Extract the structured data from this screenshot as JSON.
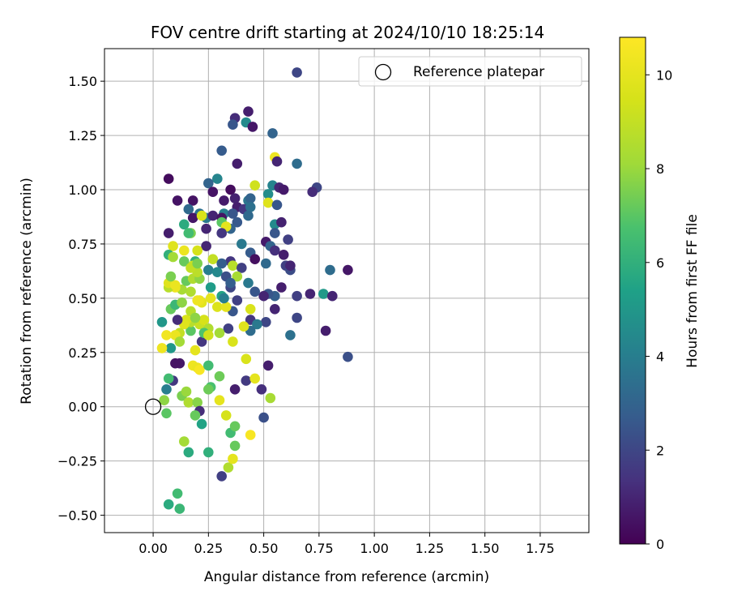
{
  "chart_data": {
    "type": "scatter",
    "title": "FOV centre drift starting at 2024/10/10 18:25:14",
    "xlabel": "Angular distance from reference (arcmin)",
    "ylabel": "Rotation from reference (arcmin)",
    "xlim": [
      -0.22,
      1.97
    ],
    "ylim": [
      -0.58,
      1.65
    ],
    "xticks": [
      0.0,
      0.25,
      0.5,
      0.75,
      1.0,
      1.25,
      1.5,
      1.75
    ],
    "xtick_labels": [
      "0.00",
      "0.25",
      "0.50",
      "0.75",
      "1.00",
      "1.25",
      "1.50",
      "1.75"
    ],
    "yticks": [
      -0.5,
      -0.25,
      0.0,
      0.25,
      0.5,
      0.75,
      1.0,
      1.25,
      1.5
    ],
    "ytick_labels": [
      "−0.50",
      "−0.25",
      "0.00",
      "0.25",
      "0.50",
      "0.75",
      "1.00",
      "1.25",
      "1.50"
    ],
    "grid": true,
    "legend": {
      "placement": "top-right",
      "entries": [
        "Reference platepar"
      ]
    },
    "reference_point": {
      "x": 0.0,
      "y": 0.0
    },
    "colorbar": {
      "label": "Hours from first FF file",
      "colormap": "viridis",
      "range": [
        0,
        10.8
      ],
      "ticks": [
        0,
        2,
        4,
        6,
        8,
        10
      ],
      "tick_labels": [
        "0",
        "2",
        "4",
        "6",
        "8",
        "10"
      ]
    },
    "series": [
      {
        "points": [
          [
            0.65,
            1.54,
            2.0
          ],
          [
            0.43,
            1.36,
            0.8
          ],
          [
            0.37,
            1.33,
            1.2
          ],
          [
            0.36,
            1.3,
            2.5
          ],
          [
            0.42,
            1.31,
            4.5
          ],
          [
            0.45,
            1.29,
            0.6
          ],
          [
            0.54,
            1.26,
            3.0
          ],
          [
            0.31,
            1.18,
            2.7
          ],
          [
            0.55,
            1.15,
            10.3
          ],
          [
            0.38,
            1.12,
            0.8
          ],
          [
            0.56,
            1.13,
            1.0
          ],
          [
            0.65,
            1.12,
            3.3
          ],
          [
            0.07,
            1.05,
            0.3
          ],
          [
            0.29,
            1.05,
            4.3
          ],
          [
            0.25,
            1.03,
            3.0
          ],
          [
            0.46,
            1.02,
            9.3
          ],
          [
            0.54,
            1.02,
            4.2
          ],
          [
            0.57,
            1.01,
            1.0
          ],
          [
            0.74,
            1.01,
            2.0
          ],
          [
            0.72,
            0.99,
            1.2
          ],
          [
            0.27,
            0.99,
            0.5
          ],
          [
            0.35,
            1.0,
            0.3
          ],
          [
            0.32,
            0.95,
            0.7
          ],
          [
            0.11,
            0.95,
            0.5
          ],
          [
            0.18,
            0.95,
            0.5
          ],
          [
            0.37,
            0.96,
            0.9
          ],
          [
            0.43,
            0.95,
            3.7
          ],
          [
            0.44,
            0.96,
            3.0
          ],
          [
            0.52,
            0.98,
            4.6
          ],
          [
            0.59,
            1.0,
            0.7
          ],
          [
            0.38,
            0.92,
            0.8
          ],
          [
            0.41,
            0.91,
            1.5
          ],
          [
            0.44,
            0.92,
            3.5
          ],
          [
            0.16,
            0.91,
            3.2
          ],
          [
            0.52,
            0.94,
            9.8
          ],
          [
            0.56,
            0.93,
            2.5
          ],
          [
            0.21,
            0.89,
            3.5
          ],
          [
            0.18,
            0.87,
            0.6
          ],
          [
            0.24,
            0.87,
            3.8
          ],
          [
            0.27,
            0.88,
            1.0
          ],
          [
            0.32,
            0.89,
            4.0
          ],
          [
            0.36,
            0.89,
            2.5
          ],
          [
            0.31,
            0.87,
            0.5
          ],
          [
            0.43,
            0.88,
            3.2
          ],
          [
            0.38,
            0.85,
            2.6
          ],
          [
            0.55,
            0.84,
            4.5
          ],
          [
            0.58,
            0.85,
            0.9
          ],
          [
            0.22,
            0.88,
            9.6
          ],
          [
            0.31,
            0.85,
            7.0
          ],
          [
            0.14,
            0.84,
            5.8
          ],
          [
            0.35,
            0.82,
            3.0
          ],
          [
            0.33,
            0.83,
            10.0
          ],
          [
            0.07,
            0.8,
            0.8
          ],
          [
            0.17,
            0.8,
            7.5
          ],
          [
            0.24,
            0.82,
            1.0
          ],
          [
            0.31,
            0.8,
            1.5
          ],
          [
            0.55,
            0.8,
            2.5
          ],
          [
            0.61,
            0.77,
            1.8
          ],
          [
            0.51,
            0.76,
            0.7
          ],
          [
            0.16,
            0.8,
            6.5
          ],
          [
            0.4,
            0.75,
            3.8
          ],
          [
            0.24,
            0.74,
            1.0
          ],
          [
            0.09,
            0.74,
            9.8
          ],
          [
            0.2,
            0.72,
            9.5
          ],
          [
            0.27,
            0.68,
            9.0
          ],
          [
            0.35,
            0.67,
            1.5
          ],
          [
            0.14,
            0.72,
            10.2
          ],
          [
            0.14,
            0.67,
            7.2
          ],
          [
            0.19,
            0.67,
            6.0
          ],
          [
            0.31,
            0.66,
            2.8
          ],
          [
            0.07,
            0.7,
            6.0
          ],
          [
            0.09,
            0.69,
            8.2
          ],
          [
            0.18,
            0.65,
            9.2
          ],
          [
            0.25,
            0.63,
            4.0
          ],
          [
            0.29,
            0.62,
            4.4
          ],
          [
            0.33,
            0.6,
            2.3
          ],
          [
            0.36,
            0.65,
            8.7
          ],
          [
            0.4,
            0.64,
            1.8
          ],
          [
            0.38,
            0.6,
            8.3
          ],
          [
            0.44,
            0.71,
            2.7
          ],
          [
            0.46,
            0.68,
            0.4
          ],
          [
            0.51,
            0.66,
            3.2
          ],
          [
            0.53,
            0.74,
            3.0
          ],
          [
            0.55,
            0.72,
            1.3
          ],
          [
            0.59,
            0.7,
            0.8
          ],
          [
            0.6,
            0.65,
            1.8
          ],
          [
            0.62,
            0.63,
            2.2
          ],
          [
            0.62,
            0.65,
            1.0
          ],
          [
            0.71,
            0.52,
            1.0
          ],
          [
            0.8,
            0.63,
            3.3
          ],
          [
            0.88,
            0.63,
            0.6
          ],
          [
            0.77,
            0.52,
            5.1
          ],
          [
            0.81,
            0.51,
            1.0
          ],
          [
            0.78,
            0.35,
            0.8
          ],
          [
            0.88,
            0.23,
            2.3
          ],
          [
            0.55,
            0.51,
            2.8
          ],
          [
            0.52,
            0.52,
            2.5
          ],
          [
            0.5,
            0.51,
            1.0
          ],
          [
            0.46,
            0.53,
            2.5
          ],
          [
            0.43,
            0.57,
            3.8
          ],
          [
            0.58,
            0.55,
            0.8
          ],
          [
            0.65,
            0.51,
            1.8
          ],
          [
            0.65,
            0.41,
            2.0
          ],
          [
            0.55,
            0.45,
            1.0
          ],
          [
            0.62,
            0.33,
            3.5
          ],
          [
            0.51,
            0.39,
            2.0
          ],
          [
            0.44,
            0.4,
            1.5
          ],
          [
            0.47,
            0.38,
            3.8
          ],
          [
            0.44,
            0.35,
            3.3
          ],
          [
            0.36,
            0.44,
            2.5
          ],
          [
            0.38,
            0.49,
            1.8
          ],
          [
            0.41,
            0.37,
            9.8
          ],
          [
            0.44,
            0.45,
            9.6
          ],
          [
            0.34,
            0.36,
            1.8
          ],
          [
            0.36,
            0.3,
            9.6
          ],
          [
            0.3,
            0.34,
            8.2
          ],
          [
            0.29,
            0.46,
            9.7
          ],
          [
            0.33,
            0.46,
            10.0
          ],
          [
            0.31,
            0.51,
            5.5
          ],
          [
            0.32,
            0.5,
            4.0
          ],
          [
            0.35,
            0.55,
            2.0
          ],
          [
            0.35,
            0.57,
            2.8
          ],
          [
            0.26,
            0.55,
            5.2
          ],
          [
            0.26,
            0.5,
            10.0
          ],
          [
            0.22,
            0.48,
            9.9
          ],
          [
            0.21,
            0.49,
            10.2
          ],
          [
            0.21,
            0.38,
            9.1
          ],
          [
            0.23,
            0.4,
            9.5
          ],
          [
            0.25,
            0.36,
            8.5
          ],
          [
            0.22,
            0.3,
            1.5
          ],
          [
            0.23,
            0.34,
            6.8
          ],
          [
            0.25,
            0.33,
            9.3
          ],
          [
            0.17,
            0.35,
            7.0
          ],
          [
            0.17,
            0.39,
            8.7
          ],
          [
            0.15,
            0.4,
            9.6
          ],
          [
            0.14,
            0.38,
            9.8
          ],
          [
            0.12,
            0.34,
            9.0
          ],
          [
            0.11,
            0.4,
            1.2
          ],
          [
            0.1,
            0.33,
            10.2
          ],
          [
            0.12,
            0.3,
            8.2
          ],
          [
            0.08,
            0.27,
            5.0
          ],
          [
            0.06,
            0.33,
            10.4
          ],
          [
            0.04,
            0.27,
            10.3
          ],
          [
            0.04,
            0.39,
            5.0
          ],
          [
            0.08,
            0.45,
            7.2
          ],
          [
            0.1,
            0.47,
            6.3
          ],
          [
            0.13,
            0.48,
            7.8
          ],
          [
            0.17,
            0.44,
            8.7
          ],
          [
            0.19,
            0.41,
            7.8
          ],
          [
            0.2,
            0.49,
            10.3
          ],
          [
            0.17,
            0.53,
            8.5
          ],
          [
            0.13,
            0.54,
            8.3
          ],
          [
            0.1,
            0.55,
            10.3
          ],
          [
            0.07,
            0.55,
            8.7
          ],
          [
            0.07,
            0.57,
            9.8
          ],
          [
            0.1,
            0.56,
            10.2
          ],
          [
            0.15,
            0.58,
            7.2
          ],
          [
            0.18,
            0.59,
            8.5
          ],
          [
            0.21,
            0.59,
            7.8
          ],
          [
            0.08,
            0.6,
            7.5
          ],
          [
            0.2,
            0.62,
            8.8
          ],
          [
            0.17,
            0.64,
            9.0
          ],
          [
            0.2,
            0.66,
            7.5
          ],
          [
            0.19,
            0.26,
            10.0
          ],
          [
            0.18,
            0.19,
            10.3
          ],
          [
            0.2,
            0.18,
            10.2
          ],
          [
            0.21,
            0.17,
            10.6
          ],
          [
            0.25,
            0.19,
            6.5
          ],
          [
            0.12,
            0.2,
            0.6
          ],
          [
            0.09,
            0.12,
            1.5
          ],
          [
            0.07,
            0.13,
            6.5
          ],
          [
            0.06,
            0.08,
            4.0
          ],
          [
            0.05,
            0.03,
            7.8
          ],
          [
            0.06,
            -0.03,
            7.0
          ],
          [
            0.13,
            0.05,
            7.5
          ],
          [
            0.15,
            0.07,
            8.0
          ],
          [
            0.16,
            0.02,
            8.5
          ],
          [
            0.2,
            0.02,
            7.7
          ],
          [
            0.21,
            -0.02,
            1.2
          ],
          [
            0.19,
            -0.04,
            7.2
          ],
          [
            0.22,
            -0.08,
            5.5
          ],
          [
            0.26,
            0.09,
            6.7
          ],
          [
            0.25,
            0.08,
            7.3
          ],
          [
            0.3,
            0.03,
            10.0
          ],
          [
            0.3,
            0.14,
            7.3
          ],
          [
            0.33,
            -0.04,
            9.5
          ],
          [
            0.35,
            -0.12,
            6.5
          ],
          [
            0.37,
            -0.09,
            7.2
          ],
          [
            0.37,
            -0.18,
            7.2
          ],
          [
            0.34,
            -0.28,
            8.5
          ],
          [
            0.36,
            -0.24,
            10.0
          ],
          [
            0.31,
            -0.32,
            1.8
          ],
          [
            0.25,
            -0.21,
            6.0
          ],
          [
            0.16,
            -0.21,
            5.8
          ],
          [
            0.14,
            -0.16,
            8.2
          ],
          [
            0.37,
            0.08,
            0.8
          ],
          [
            0.42,
            0.12,
            1.6
          ],
          [
            0.42,
            0.22,
            9.6
          ],
          [
            0.46,
            0.13,
            10.0
          ],
          [
            0.44,
            -0.13,
            10.6
          ],
          [
            0.49,
            0.08,
            1.3
          ],
          [
            0.5,
            -0.05,
            2.3
          ],
          [
            0.52,
            0.19,
            0.8
          ],
          [
            0.53,
            0.04,
            8.3
          ],
          [
            0.1,
            0.2,
            0.5
          ],
          [
            0.11,
            -0.4,
            6.5
          ],
          [
            0.07,
            -0.45,
            5.8
          ],
          [
            0.12,
            -0.47,
            6.3
          ]
        ]
      }
    ]
  }
}
